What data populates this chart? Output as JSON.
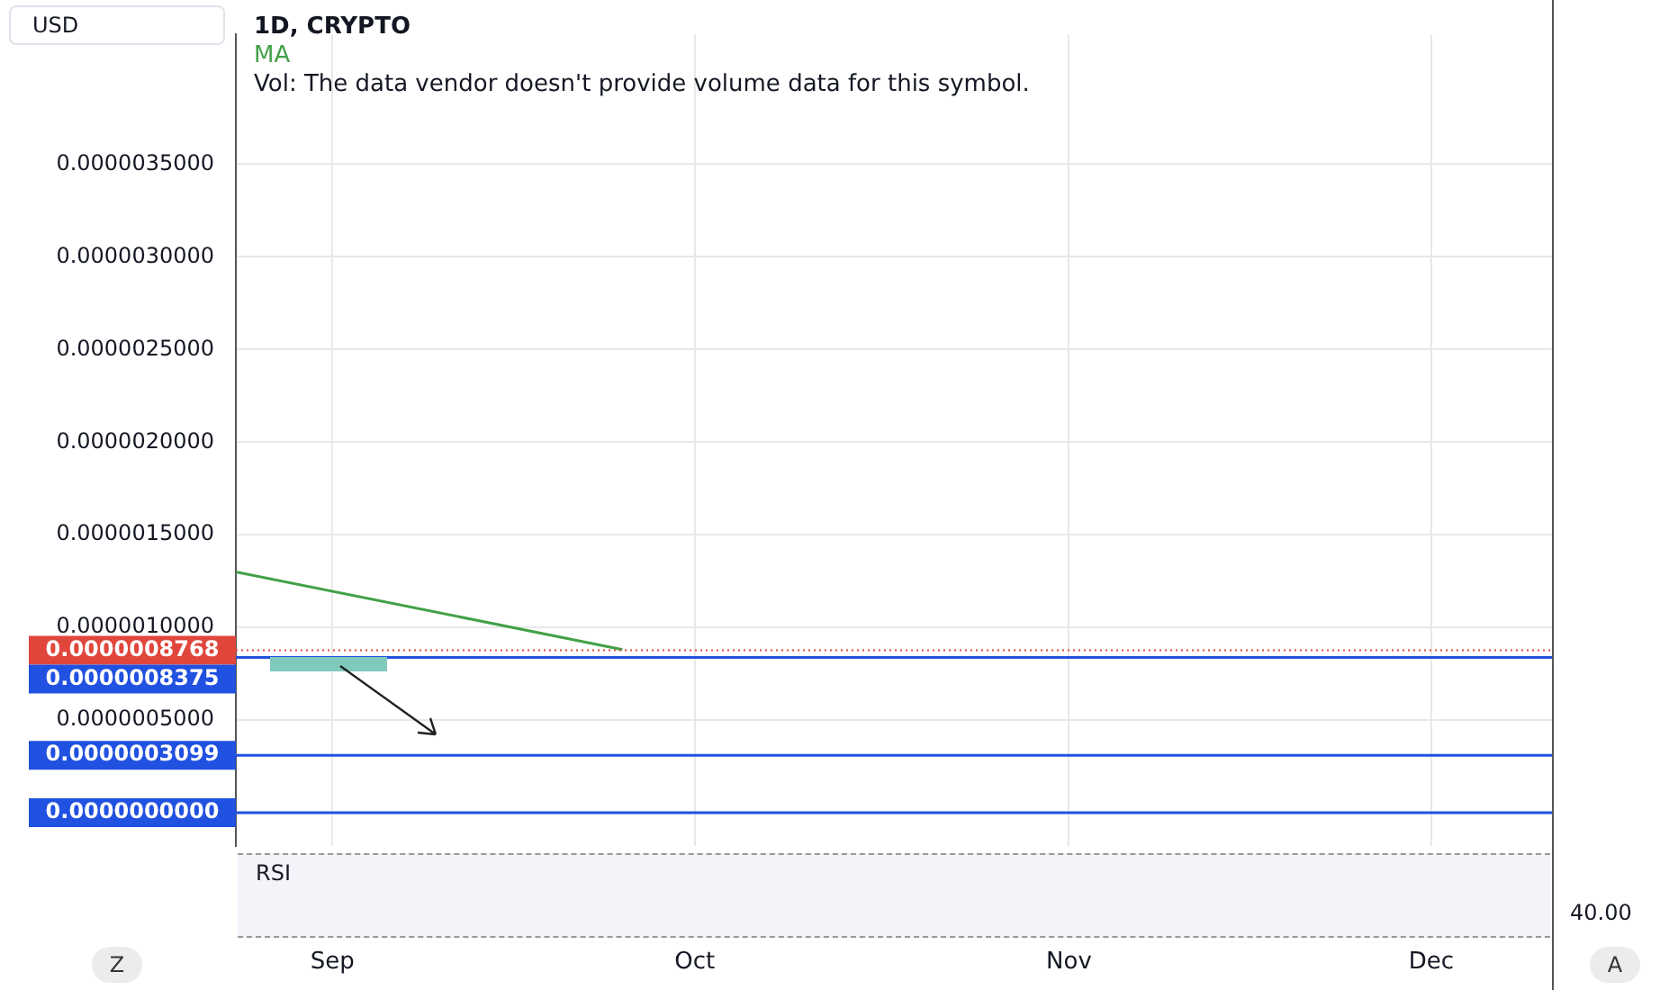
{
  "chart_data": {
    "type": "line",
    "title": "1D, CRYPTO",
    "ylabel": "USD",
    "annotations": [
      "Vol: The data vendor doesn't provide volume data for this symbol.",
      "RSI",
      "40.00",
      "Z",
      "A"
    ],
    "series": [
      {
        "name": "MA",
        "color": "#43a047",
        "x": [
          "--08-24",
          "--09-25"
        ],
        "values": [
          1.3e-06,
          8.8e-07
        ]
      }
    ],
    "xlim": [
      "--08-24",
      "--12-11"
    ],
    "xticks": [
      {
        "value": "--09-01",
        "label": "Sep"
      },
      {
        "value": "--10-01",
        "label": "Oct"
      },
      {
        "value": "--11-01",
        "label": "Nov"
      },
      {
        "value": "--12-01",
        "label": "Dec"
      }
    ],
    "ylim": [
      -1.8e-07,
      4.2e-06
    ],
    "yticks": [
      {
        "value": 5e-07,
        "label": "0.0000005000"
      },
      {
        "value": 1e-06,
        "label": "0.0000010000"
      },
      {
        "value": 1.5e-06,
        "label": "0.0000015000"
      },
      {
        "value": 2e-06,
        "label": "0.0000020000"
      },
      {
        "value": 2.5e-06,
        "label": "0.0000025000"
      },
      {
        "value": 3e-06,
        "label": "0.0000030000"
      },
      {
        "value": 3.5e-06,
        "label": "0.0000035000"
      }
    ],
    "ref_lines": [
      {
        "axis": "y",
        "value": 8.768e-07,
        "label": "0.0000008768",
        "color": "#e0463c",
        "line_style": "dotted"
      },
      {
        "axis": "y",
        "value": 8.375e-07,
        "label": "0.0000008375",
        "color": "#2151e0"
      },
      {
        "axis": "y",
        "value": 3.099e-07,
        "label": "0.0000003099",
        "color": "#2151e0"
      },
      {
        "axis": "y",
        "value": 0,
        "label": "0.0000000000",
        "color": "#2151e0"
      }
    ],
    "grid": true,
    "legend": "top left",
    "marker": "none"
  }
}
